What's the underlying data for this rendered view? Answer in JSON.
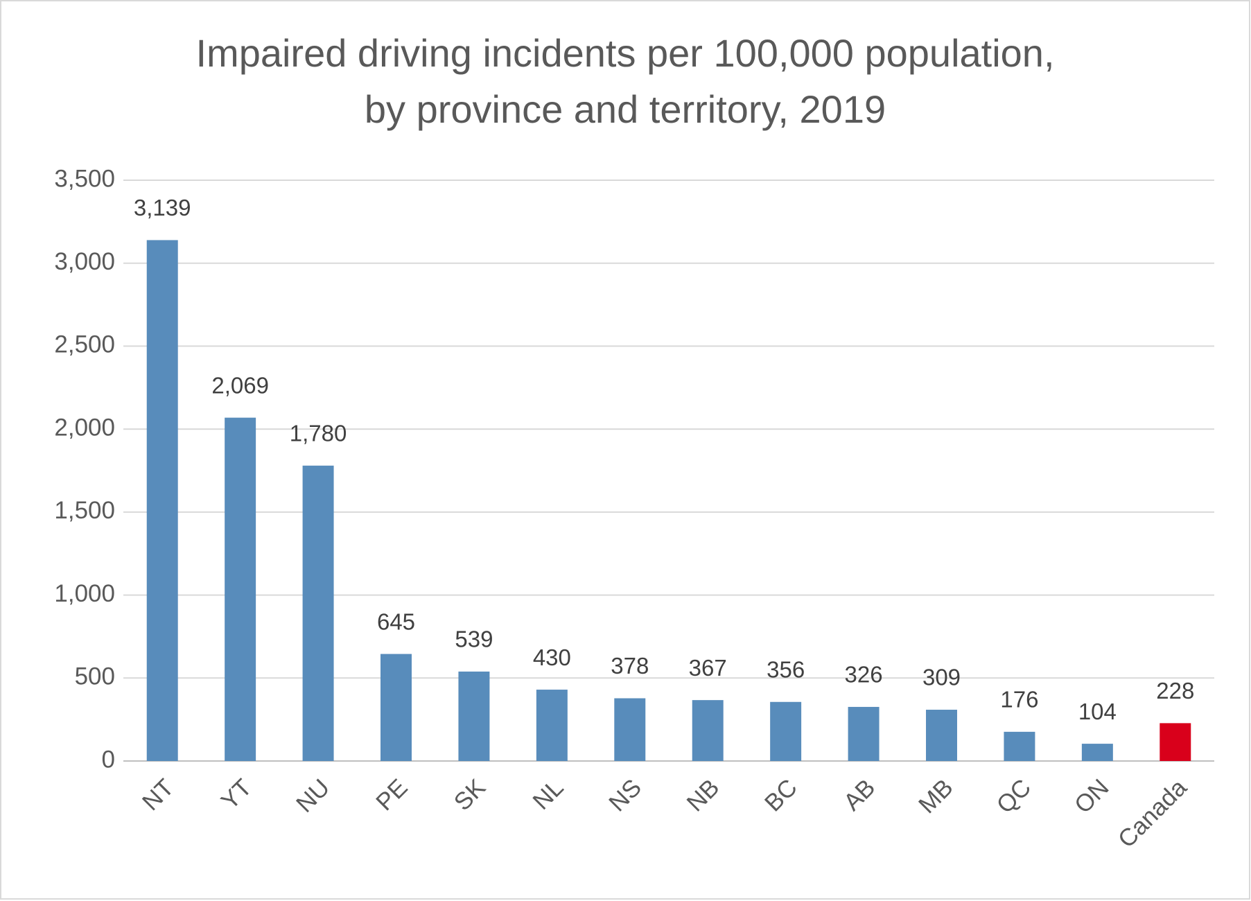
{
  "chart_data": {
    "type": "bar",
    "title": [
      "Impaired driving incidents per 100,000 population,",
      "by province and territory, 2019"
    ],
    "categories": [
      "NT",
      "YT",
      "NU",
      "PE",
      "SK",
      "NL",
      "NS",
      "NB",
      "BC",
      "AB",
      "MB",
      "QC",
      "ON",
      "Canada"
    ],
    "values": [
      3139,
      2069,
      1780,
      645,
      539,
      430,
      378,
      367,
      356,
      326,
      309,
      176,
      104,
      228
    ],
    "value_labels": [
      "3,139",
      "2,069",
      "1,780",
      "645",
      "539",
      "430",
      "378",
      "367",
      "356",
      "326",
      "309",
      "176",
      "104",
      "228"
    ],
    "colors": [
      "#588cbb",
      "#588cbb",
      "#588cbb",
      "#588cbb",
      "#588cbb",
      "#588cbb",
      "#588cbb",
      "#588cbb",
      "#588cbb",
      "#588cbb",
      "#588cbb",
      "#588cbb",
      "#588cbb",
      "#d9001b"
    ],
    "ylim": [
      0,
      3500
    ],
    "yticks": [
      0,
      500,
      {
        "value": 1000,
        "label": "1,000"
      },
      {
        "value": 1500,
        "label": "1,500"
      },
      {
        "value": 2000,
        "label": "2,000"
      },
      {
        "value": 2500,
        "label": "2,500"
      },
      {
        "value": 3000,
        "label": "3,000"
      },
      {
        "value": 3500,
        "label": "3,500"
      }
    ],
    "grid": true
  }
}
